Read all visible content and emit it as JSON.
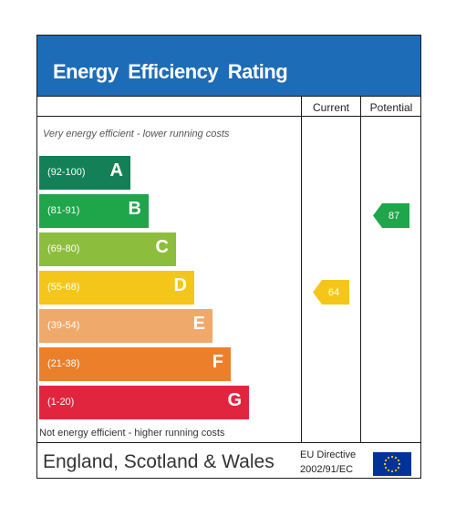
{
  "header": {
    "title": "Energy  Efficiency  Rating"
  },
  "columns": {
    "current": "Current",
    "potential": "Potential"
  },
  "captions": {
    "top": "Very energy efficient - lower running costs",
    "bottom": "Not energy efficient - higher running costs"
  },
  "footer": {
    "region": "England, Scotland & Wales",
    "directive_line1": "EU Directive",
    "directive_line2": "2002/91/EC"
  },
  "colors": {
    "header": "#1d6cb7",
    "bands": [
      "#138057",
      "#1fa54a",
      "#8dbd3d",
      "#f5c61a",
      "#efa96b",
      "#ec7f2a",
      "#e2253f"
    ]
  },
  "chart_data": {
    "type": "bar",
    "categories": [
      "A",
      "B",
      "C",
      "D",
      "E",
      "F",
      "G"
    ],
    "ranges": [
      "(92-100)",
      "(81-91)",
      "(69-80)",
      "(55-68)",
      "(39-54)",
      "(21-38)",
      "(1-20)"
    ],
    "current": {
      "value": 64,
      "band": "D"
    },
    "potential": {
      "value": 87,
      "band": "B"
    }
  }
}
